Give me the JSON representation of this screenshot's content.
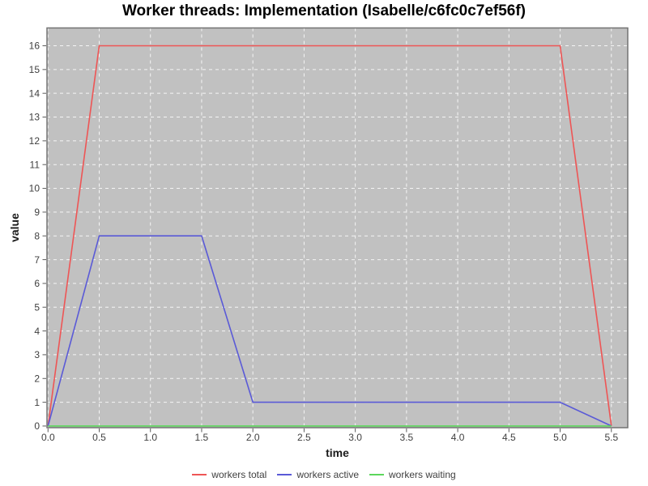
{
  "chart_data": {
    "type": "line",
    "title": "Worker threads: Implementation (Isabelle/c6fc0c7ef56f)",
    "xlabel": "time",
    "ylabel": "value",
    "xlim": [
      -0.01,
      5.66
    ],
    "ylim": [
      -0.07,
      16.75
    ],
    "xticks": [
      0,
      0.5,
      1,
      1.5,
      2,
      2.5,
      3,
      3.5,
      4,
      4.5,
      5,
      5.5
    ],
    "xtick_labels": [
      "0.0",
      "0.5",
      "1.0",
      "1.5",
      "2.0",
      "2.5",
      "3.0",
      "3.5",
      "4.0",
      "4.5",
      "5.0",
      "5.5"
    ],
    "yticks": [
      0,
      1,
      2,
      3,
      4,
      5,
      6,
      7,
      8,
      9,
      10,
      11,
      12,
      13,
      14,
      15,
      16
    ],
    "ytick_labels": [
      "0",
      "1",
      "2",
      "3",
      "4",
      "5",
      "6",
      "7",
      "8",
      "9",
      "10",
      "11",
      "12",
      "13",
      "14",
      "15",
      "16"
    ],
    "grid": true,
    "legend_position": "bottom",
    "colors": {
      "plot_bg": "#c1c1c1",
      "grid": "#ffffff",
      "frame": "#737373",
      "tick": "#5a5a5a",
      "tick_text": "#3f3f3f"
    },
    "series": [
      {
        "name": "workers total",
        "color": "#ee5555",
        "points": [
          [
            0,
            0
          ],
          [
            0.5,
            16
          ],
          [
            5.0,
            16
          ],
          [
            5.5,
            0
          ]
        ]
      },
      {
        "name": "workers active",
        "color": "#5a5ad7",
        "points": [
          [
            0,
            0
          ],
          [
            0.5,
            8
          ],
          [
            1.5,
            8
          ],
          [
            2.0,
            1
          ],
          [
            5.0,
            1
          ],
          [
            5.5,
            0
          ]
        ]
      },
      {
        "name": "workers waiting",
        "color": "#5cd65c",
        "points": [
          [
            0,
            0
          ],
          [
            5.5,
            0
          ]
        ]
      }
    ]
  }
}
